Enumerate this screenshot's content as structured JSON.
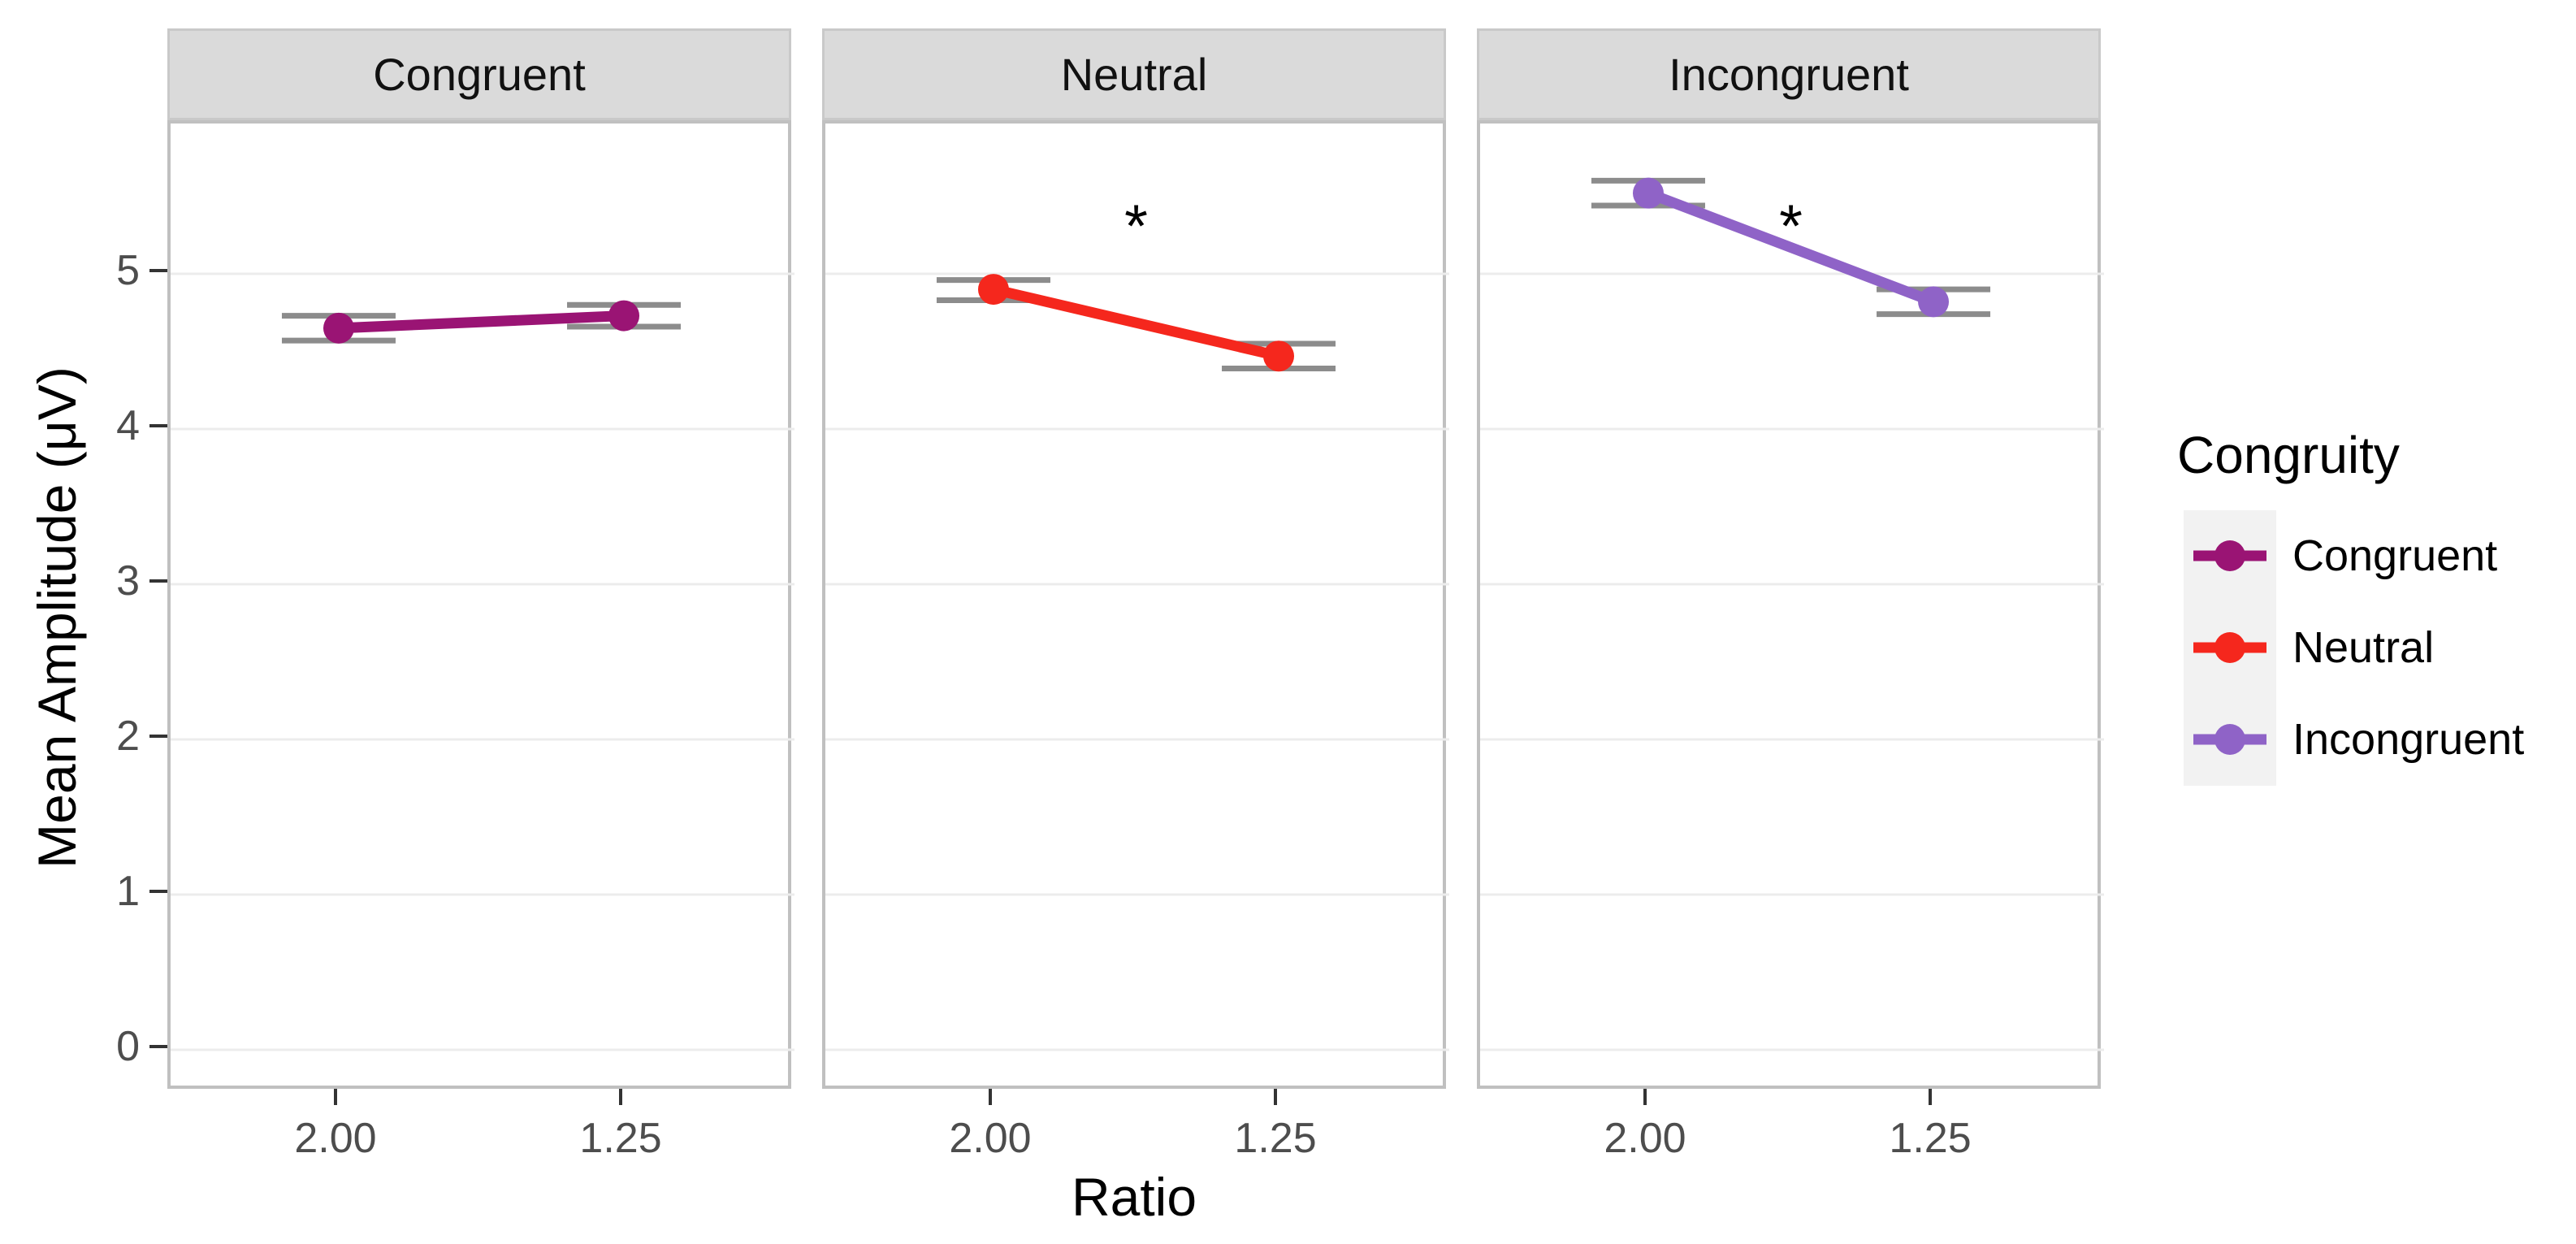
{
  "chart_data": {
    "type": "line",
    "title": "",
    "faceted_by": "Congruity",
    "categories": [
      "2.00",
      "1.25"
    ],
    "xlabel": "Ratio",
    "ylabel": "Mean Amplitude (μV)",
    "yticks": [
      0,
      1,
      2,
      3,
      4,
      5
    ],
    "ylim": [
      -0.27,
      5.97
    ],
    "grid": "horizontal-major-only",
    "legend_position": "right",
    "significance_marker_y": 5.4,
    "facets": [
      {
        "label": "Congruent",
        "color": "#9A1474",
        "significance": "",
        "points": [
          {
            "x": "2.00",
            "y": 4.65,
            "ci_low": 4.57,
            "ci_high": 4.73
          },
          {
            "x": "1.25",
            "y": 4.73,
            "ci_low": 4.66,
            "ci_high": 4.8
          }
        ]
      },
      {
        "label": "Neutral",
        "color": "#F5271D",
        "significance": "*",
        "points": [
          {
            "x": "2.00",
            "y": 4.9,
            "ci_low": 4.83,
            "ci_high": 4.96
          },
          {
            "x": "1.25",
            "y": 4.47,
            "ci_low": 4.39,
            "ci_high": 4.55
          }
        ]
      },
      {
        "label": "Incongruent",
        "color": "#8F63C7",
        "significance": "*",
        "points": [
          {
            "x": "2.00",
            "y": 5.52,
            "ci_low": 5.44,
            "ci_high": 5.6
          },
          {
            "x": "1.25",
            "y": 4.82,
            "ci_low": 4.74,
            "ci_high": 4.9
          }
        ]
      }
    ]
  },
  "legend": {
    "title": "Congruity",
    "entries": [
      {
        "label": "Congruent",
        "color": "#9A1474"
      },
      {
        "label": "Neutral",
        "color": "#F5271D"
      },
      {
        "label": "Incongruent",
        "color": "#8F63C7"
      }
    ]
  },
  "style_colors": {
    "gridline": "#ECECEC",
    "panel_border": "#C0C0C0",
    "strip_background": "#DADADA",
    "error_bar": "#8C8C8C",
    "tick_text": "#4D4D4D",
    "legend_key_background": "#F2F2F2"
  }
}
